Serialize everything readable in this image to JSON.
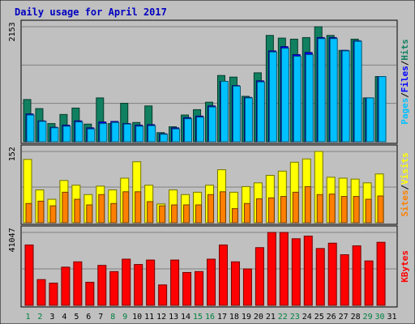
{
  "colors": {
    "frame_bg": "#c0c0c0",
    "plot_bg": "#c0c0c0",
    "grid": "#808080",
    "title": "#0000c0",
    "pages": "#00c0ff",
    "files": "#0000ff",
    "hits": "#108060",
    "visits": "#ffff00",
    "sites": "#ff8000",
    "kbytes": "#ff0000",
    "weekend_label": "#008040",
    "weekday_label": "#000000"
  },
  "chart_data": {
    "type": "bar",
    "title": "Daily usage for April 2017",
    "categories": [
      "1",
      "2",
      "3",
      "4",
      "5",
      "6",
      "7",
      "8",
      "9",
      "10",
      "11",
      "12",
      "13",
      "14",
      "15",
      "16",
      "17",
      "18",
      "19",
      "20",
      "21",
      "22",
      "23",
      "24",
      "25",
      "26",
      "27",
      "28",
      "29",
      "30",
      "31"
    ],
    "weekend_days": [
      "1",
      "2",
      "8",
      "9",
      "15",
      "16",
      "22",
      "23",
      "29",
      "30"
    ],
    "panels": [
      {
        "name": "pages-files-hits",
        "max_label": "2153",
        "ylim": [
          0,
          2153
        ],
        "right_labels": [
          "Pages",
          "Files",
          "Hits"
        ],
        "series": [
          {
            "name": "Hits",
            "color_key": "hits",
            "values": [
              790,
              620,
              340,
              510,
              630,
              330,
              820,
              340,
              720,
              360,
              670,
              170,
              280,
              500,
              600,
              740,
              1240,
              1210,
              850,
              1290,
              1990,
              1940,
              1920,
              1950,
              2153,
              1990,
              1710,
              1920,
              820,
              1220,
              null
            ]
          },
          {
            "name": "Files",
            "color_key": "files",
            "values": [
              520,
              390,
              270,
              310,
              390,
              260,
              370,
              380,
              340,
              310,
              320,
              150,
              260,
              450,
              480,
              670,
              1130,
              1050,
              830,
              1140,
              1700,
              1780,
              1630,
              1670,
              1950,
              1950,
              1710,
              1890,
              820,
              1220,
              null
            ]
          },
          {
            "name": "Pages",
            "color_key": "pages",
            "values": [
              500,
              380,
              260,
              290,
              370,
              240,
              340,
              360,
              330,
              290,
              300,
              140,
              240,
              430,
              460,
              650,
              1130,
              1040,
              820,
              1120,
              1680,
              1750,
              1600,
              1630,
              1930,
              1930,
              1700,
              1880,
              820,
              1220,
              null
            ]
          }
        ]
      },
      {
        "name": "visits-sites",
        "max_label": "152",
        "ylim": [
          0,
          152
        ],
        "right_labels": [
          "Sites",
          "Visits"
        ],
        "series": [
          {
            "name": "Visits",
            "color_key": "visits",
            "values": [
              135,
              70,
              50,
              90,
              80,
              60,
              78,
              70,
              95,
              130,
              80,
              40,
              70,
              60,
              65,
              80,
              113,
              65,
              77,
              85,
              101,
              110,
              129,
              136,
              152,
              97,
              95,
              93,
              85,
              104,
              null
            ]
          },
          {
            "name": "Sites",
            "color_key": "sites",
            "values": [
              41,
              46,
              36,
              65,
              50,
              38,
              60,
              41,
              66,
              66,
              45,
              36,
              38,
              38,
              38,
              60,
              66,
              30,
              41,
              51,
              53,
              56,
              65,
              77,
              60,
              61,
              56,
              56,
              50,
              57,
              null
            ]
          }
        ]
      },
      {
        "name": "kbytes",
        "max_label": "41047",
        "ylim": [
          0,
          41047
        ],
        "right_labels": [
          "KBytes"
        ],
        "series": [
          {
            "name": "KBytes",
            "color_key": "kbytes",
            "values": [
              34000,
              14500,
              12500,
              21500,
              24500,
              13000,
              22500,
              19000,
              26000,
              23000,
              25500,
              11500,
              25500,
              18500,
              19000,
              26000,
              34000,
              24500,
              20500,
              32500,
              41047,
              41047,
              37500,
              39000,
              32000,
              35000,
              28500,
              33500,
              25000,
              35500,
              null
            ]
          }
        ]
      }
    ]
  }
}
